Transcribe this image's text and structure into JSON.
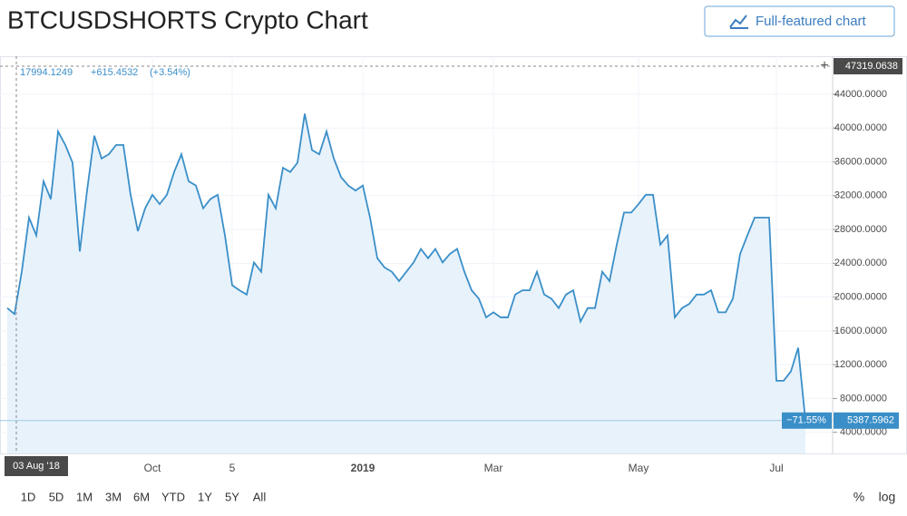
{
  "title": "BTCUSDSHORTS Crypto Chart",
  "button": "Full-featured chart",
  "legend": {
    "value": "17994.1249",
    "change": "+615.4532",
    "percent": "(+3.54%)"
  },
  "crosshair": {
    "x_label": "03 Aug '18",
    "y": 47319.0638
  },
  "change_badge": "−71.55%",
  "ranges": [
    "1D",
    "5D",
    "1M",
    "3M",
    "6M",
    "YTD",
    "1Y",
    "5Y",
    "All"
  ],
  "scale_buttons": [
    "%",
    "log"
  ],
  "chart_data": {
    "type": "area",
    "color": "#3a8fc8",
    "fill": "#e8f2fb",
    "grid": true,
    "ylim": [
      1500,
      48500
    ],
    "yticks": [
      {
        "value": 4000,
        "label": "4000.0000"
      },
      {
        "value": 8000,
        "label": "8000.0000"
      },
      {
        "value": 12000,
        "label": "12000.0000"
      },
      {
        "value": 16000,
        "label": "16000.0000"
      },
      {
        "value": 20000,
        "label": "20000.0000"
      },
      {
        "value": 24000,
        "label": "24000.0000"
      },
      {
        "value": 28000,
        "label": "28000.0000"
      },
      {
        "value": 32000,
        "label": "32000.0000"
      },
      {
        "value": 36000,
        "label": "36000.0000"
      },
      {
        "value": 40000,
        "label": "40000.0000"
      },
      {
        "value": 44000,
        "label": "44000.0000"
      }
    ],
    "categories": [
      null,
      null,
      null,
      null,
      null,
      null,
      null,
      null,
      null,
      null,
      null,
      null,
      null,
      null,
      null,
      null,
      null,
      null,
      null,
      null,
      "Oct",
      null,
      null,
      null,
      null,
      null,
      null,
      null,
      null,
      null,
      null,
      "5",
      null,
      null,
      null,
      null,
      null,
      null,
      null,
      null,
      null,
      null,
      null,
      null,
      null,
      null,
      null,
      null,
      null,
      "2019",
      null,
      null,
      null,
      null,
      null,
      null,
      null,
      null,
      null,
      null,
      null,
      null,
      null,
      null,
      null,
      null,
      null,
      "Mar",
      null,
      null,
      null,
      null,
      null,
      null,
      null,
      null,
      null,
      null,
      null,
      null,
      null,
      null,
      null,
      null,
      null,
      null,
      null,
      "May",
      null,
      null,
      null,
      null,
      null,
      null,
      null,
      null,
      null,
      null,
      null,
      null,
      null,
      null,
      null,
      null,
      null,
      null,
      "Jul",
      null,
      null,
      null,
      null
    ],
    "values": [
      18700,
      17994,
      23000,
      29400,
      27300,
      33700,
      31600,
      39600,
      38000,
      35900,
      25400,
      32600,
      39100,
      36400,
      36900,
      38000,
      38000,
      32100,
      27800,
      30500,
      32100,
      31000,
      32100,
      34800,
      36900,
      33700,
      33200,
      30500,
      31600,
      32100,
      27300,
      21400,
      20800,
      20300,
      24100,
      23000,
      32100,
      30500,
      35300,
      34800,
      35900,
      41700,
      37400,
      36900,
      39600,
      36400,
      34200,
      33200,
      32600,
      33200,
      29400,
      24600,
      23500,
      23000,
      21900,
      23000,
      24100,
      25700,
      24600,
      25700,
      24100,
      25100,
      25700,
      23000,
      20800,
      19800,
      17600,
      18200,
      17600,
      17600,
      20300,
      20800,
      20800,
      23000,
      20300,
      19800,
      18700,
      20300,
      20800,
      17100,
      18700,
      18700,
      23000,
      21900,
      26200,
      30000,
      30000,
      31000,
      32100,
      32100,
      26200,
      27300,
      17600,
      18700,
      19200,
      20300,
      20300,
      20800,
      18200,
      18200,
      19800,
      25100,
      27300,
      29400,
      29400,
      29400,
      10100,
      10100,
      11200,
      14000,
      5387.5962
    ]
  }
}
